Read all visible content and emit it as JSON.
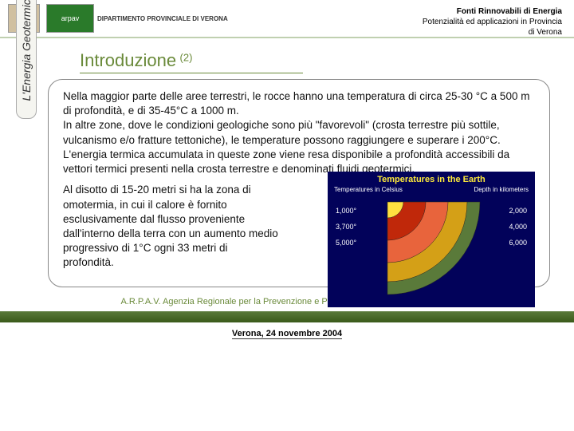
{
  "header": {
    "dept": "DIPARTIMENTO PROVINCIALE DI VERONA",
    "arpav": "arpav",
    "title_line1": "Fonti Rinnovabili di Energia",
    "title_line2": "Potenzialità ed applicazioni in Provincia",
    "title_line3": "di Verona"
  },
  "section": {
    "title": "Introduzione",
    "sup": "(2)"
  },
  "sidebar": {
    "label": "L'Energia Geotermica"
  },
  "body": {
    "p1": "Nella maggior parte delle aree terrestri, le rocce hanno una temperatura di circa 25-30 °C a 500 m di profondità, e di 35-45°C a 1000 m.",
    "p2": "In altre zone, dove le condizioni geologiche sono più \"favorevoli\" (crosta terrestre più sottile, vulcanismo e/o fratture tettoniche), le temperature possono raggiungere e superare i 200°C.",
    "p3": "L'energia termica accumulata in queste zone viene resa  disponibile a profondità accessibili da vettori termici presenti nella crosta terrestre e denominati fluidi geotermici.",
    "p4": "Al disotto di 15-20 metri si ha la zona di omotermia, in cui il calore è fornito esclusivamente dal flusso proveniente dall'interno della terra  con un aumento medio progressivo di 1°C ogni 33 metri di profondità."
  },
  "figure": {
    "title": "Temperatures in the Earth",
    "left_header": "Temperatures in Celsius",
    "right_header": "Depth in kilometers",
    "left_scale": [
      "1,000°",
      "3,700°",
      "5,000°"
    ],
    "right_scale": [
      "2,000",
      "4,000",
      "6,000"
    ],
    "layers": [
      {
        "color": "#5a7a3a",
        "r": 58
      },
      {
        "color": "#d4a017",
        "r": 50
      },
      {
        "color": "#e8643c",
        "r": 38
      },
      {
        "color": "#c0280a",
        "r": 24
      },
      {
        "color": "#ffe040",
        "r": 10
      }
    ],
    "bg": "#02025a"
  },
  "footer": {
    "agency": "A.R.P.A.V. Agenzia Regionale per la Prevenzione e Protezione Ambientale del Veneto",
    "date": "Verona, 24 novembre 2004"
  }
}
